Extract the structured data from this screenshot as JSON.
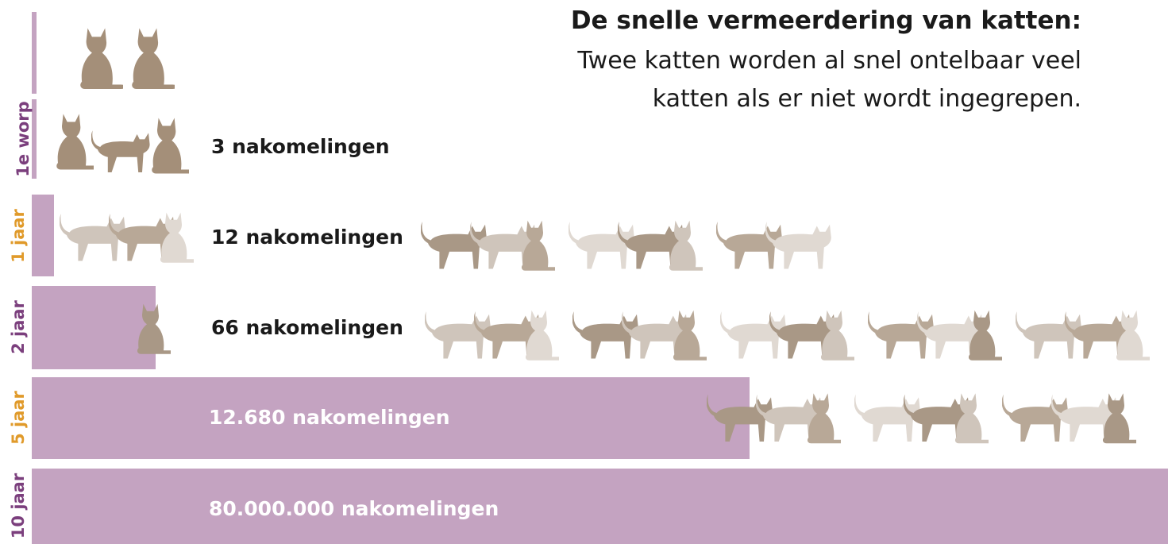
{
  "header": {
    "title": "De snelle vermeerdering van katten:",
    "subtitle_lines": [
      "Twee katten worden al snel ontelbaar veel",
      "katten als er niet wordt ingegrepen."
    ]
  },
  "rows": [
    {
      "period": "1e worp",
      "label": "3 nakomelingen"
    },
    {
      "period": "1 jaar",
      "label": "12 nakomelingen"
    },
    {
      "period": "2 jaar",
      "label": "66 nakomelingen"
    },
    {
      "period": "5 jaar",
      "label": "12.680 nakomelingen"
    },
    {
      "period": "10 jaar",
      "label": "80.000.000 nakomelingen"
    }
  ]
}
